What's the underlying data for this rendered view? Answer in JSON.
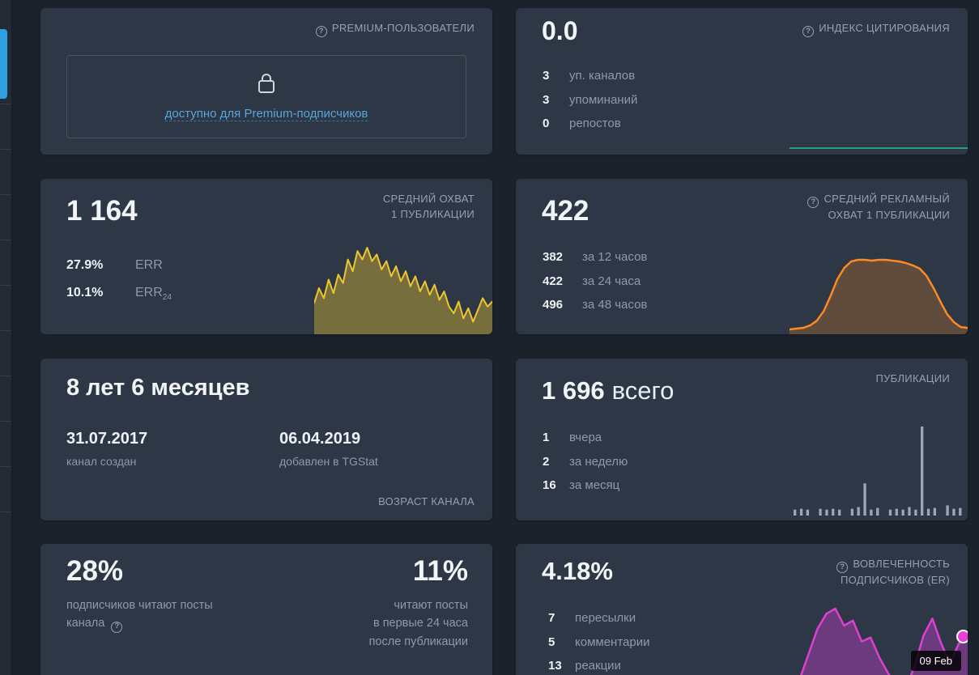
{
  "icons": {
    "help": "?"
  },
  "cards": {
    "premium": {
      "title": "PREMIUM-ПОЛЬЗОВАТЕЛИ",
      "locked_link": "доступно для Premium-подписчиков"
    },
    "citation": {
      "title": "ИНДЕКС ЦИТИРОВАНИЯ",
      "value": "0.0",
      "stats": [
        {
          "value": "3",
          "label": "уп. каналов"
        },
        {
          "value": "3",
          "label": "упоминаний"
        },
        {
          "value": "0",
          "label": "репостов"
        }
      ]
    },
    "reach": {
      "title_line1": "СРЕДНИЙ ОХВАТ",
      "title_line2": "1 ПУБЛИКАЦИИ",
      "value": "1 164",
      "stats": [
        {
          "value": "27.9%",
          "label": "ERR",
          "label_sub": ""
        },
        {
          "value": "10.1%",
          "label": "ERR",
          "label_sub": "24"
        }
      ]
    },
    "ad_reach": {
      "title_line1": "СРЕДНИЙ РЕКЛАМНЫЙ",
      "title_line2": "ОХВАТ 1 ПУБЛИКАЦИИ",
      "value": "422",
      "stats": [
        {
          "value": "382",
          "label": "за 12 часов"
        },
        {
          "value": "422",
          "label": "за 24 часа"
        },
        {
          "value": "496",
          "label": "за 48 часов"
        }
      ]
    },
    "age": {
      "title": "ВОЗРАСТ КАНАЛА",
      "value": "8 лет 6 месяцев",
      "created_date": "31.07.2017",
      "created_label": "канал создан",
      "added_date": "06.04.2019",
      "added_label": "добавлен в TGStat"
    },
    "publications": {
      "title": "ПУБЛИКАЦИИ",
      "value": "1 696",
      "value_suffix": "всего",
      "stats": [
        {
          "value": "1",
          "label": "вчера"
        },
        {
          "value": "2",
          "label": "за неделю"
        },
        {
          "value": "16",
          "label": "за месяц"
        }
      ]
    },
    "read_rate": {
      "left_value": "28%",
      "left_label_line1": "подписчиков читают посты",
      "left_label_line2": "канала",
      "right_value": "11%",
      "right_label_line1": "читают посты",
      "right_label_line2": "в первые 24 часа",
      "right_label_line3": "после публикации"
    },
    "er": {
      "title_line1": "ВОВЛЕЧЕННОСТЬ",
      "title_line2": "ПОДПИСЧИКОВ (ER)",
      "value": "4.18%",
      "stats": [
        {
          "value": "7",
          "label": "пересылки"
        },
        {
          "value": "5",
          "label": "комментарии"
        },
        {
          "value": "13",
          "label": "реакции"
        }
      ],
      "tooltip": "09 Feb"
    }
  },
  "chart_data": {
    "citation_spark": {
      "type": "line",
      "values": [
        2,
        2,
        2,
        2,
        2,
        2,
        2,
        2,
        2,
        2
      ],
      "max": 12,
      "stroke": "#2fc089",
      "stroke_width": 1.5
    },
    "reach_spark": {
      "type": "area",
      "values": [
        34,
        52,
        40,
        62,
        46,
        68,
        58,
        86,
        72,
        96,
        86,
        100,
        84,
        92,
        74,
        84,
        66,
        78,
        60,
        72,
        54,
        66,
        48,
        60,
        44,
        56,
        38,
        48,
        30,
        22,
        36,
        16,
        28,
        12,
        26,
        40,
        30,
        36
      ],
      "stroke": "#eec72f",
      "fill": "rgba(222,186,50,0.42)",
      "stroke_width": 2
    },
    "ad_reach_spark": {
      "type": "area",
      "values": [
        3,
        4,
        5,
        8,
        14,
        26,
        45,
        66,
        80,
        88,
        90,
        90,
        89,
        90,
        90,
        89,
        88,
        86,
        83,
        79,
        70,
        55,
        38,
        22,
        12,
        6,
        5
      ],
      "stroke": "#fd8a25",
      "fill": "rgba(253,138,37,0.25)",
      "stroke_width": 2.5
    },
    "publications_bars": {
      "type": "bars",
      "values": [
        7,
        8,
        7,
        0,
        8,
        7,
        8,
        7,
        0,
        8,
        10,
        38,
        7,
        9,
        0,
        7,
        8,
        7,
        10,
        7,
        105,
        8,
        9,
        0,
        12,
        8,
        9
      ],
      "color": "#9aa7b6"
    },
    "er_spark": {
      "type": "area",
      "values": [
        12,
        25,
        50,
        75,
        90,
        95,
        78,
        83,
        62,
        66,
        46,
        30,
        18,
        14,
        38,
        68,
        85,
        60,
        40,
        60,
        68
      ],
      "stroke": "#df3fd3",
      "fill": "rgba(186,64,196,0.45)",
      "stroke_width": 2.5
    }
  }
}
